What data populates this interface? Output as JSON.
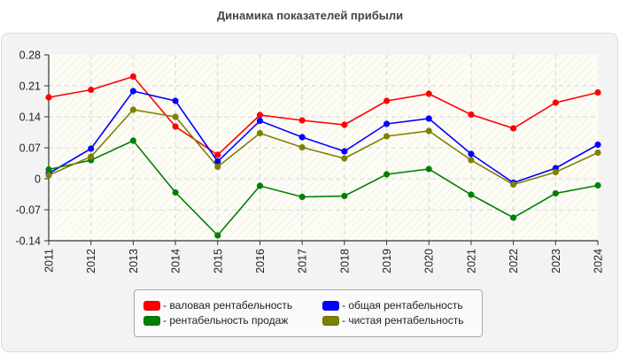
{
  "title": "Динамика показателей прибыли",
  "legend": [
    {
      "label": "- валовая рентабельность",
      "color": "#ff0000"
    },
    {
      "label": "- общая рентабельность",
      "color": "#0000ff"
    },
    {
      "label": "- рентабельность продаж",
      "color": "#008000"
    },
    {
      "label": "- чистая рентабельность",
      "color": "#808000"
    }
  ],
  "chart_data": {
    "type": "line",
    "title": "Динамика показателей прибыли",
    "xlabel": "",
    "ylabel": "",
    "categories": [
      "2011",
      "2012",
      "2013",
      "2014",
      "2015",
      "2016",
      "2017",
      "2018",
      "2019",
      "2020",
      "2021",
      "2022",
      "2023",
      "2024"
    ],
    "yticks": [
      "0.28",
      "0.21",
      "0.14",
      "0.07",
      "0",
      "-0.07",
      "-0.14"
    ],
    "ylim": [
      -0.14,
      0.28
    ],
    "grid": true,
    "legend_position": "bottom",
    "series": [
      {
        "name": "валовая рентабельность",
        "color": "#ff0000",
        "values": [
          0.184,
          0.201,
          0.231,
          0.118,
          0.054,
          0.144,
          0.132,
          0.122,
          0.176,
          0.192,
          0.145,
          0.114,
          0.172,
          0.195
        ]
      },
      {
        "name": "общая рентабельность",
        "color": "#0000ff",
        "values": [
          0.012,
          0.068,
          0.198,
          0.176,
          0.039,
          0.131,
          0.094,
          0.062,
          0.124,
          0.136,
          0.056,
          -0.009,
          0.024,
          0.077
        ]
      },
      {
        "name": "рентабельность продаж",
        "color": "#008000",
        "values": [
          0.021,
          0.042,
          0.086,
          -0.031,
          -0.128,
          -0.016,
          -0.041,
          -0.039,
          0.01,
          0.022,
          -0.036,
          -0.088,
          -0.033,
          -0.015
        ]
      },
      {
        "name": "чистая рентабельность",
        "color": "#808000",
        "values": [
          0.008,
          0.05,
          0.156,
          0.14,
          0.027,
          0.103,
          0.071,
          0.046,
          0.096,
          0.108,
          0.042,
          -0.013,
          0.015,
          0.059
        ]
      }
    ]
  }
}
